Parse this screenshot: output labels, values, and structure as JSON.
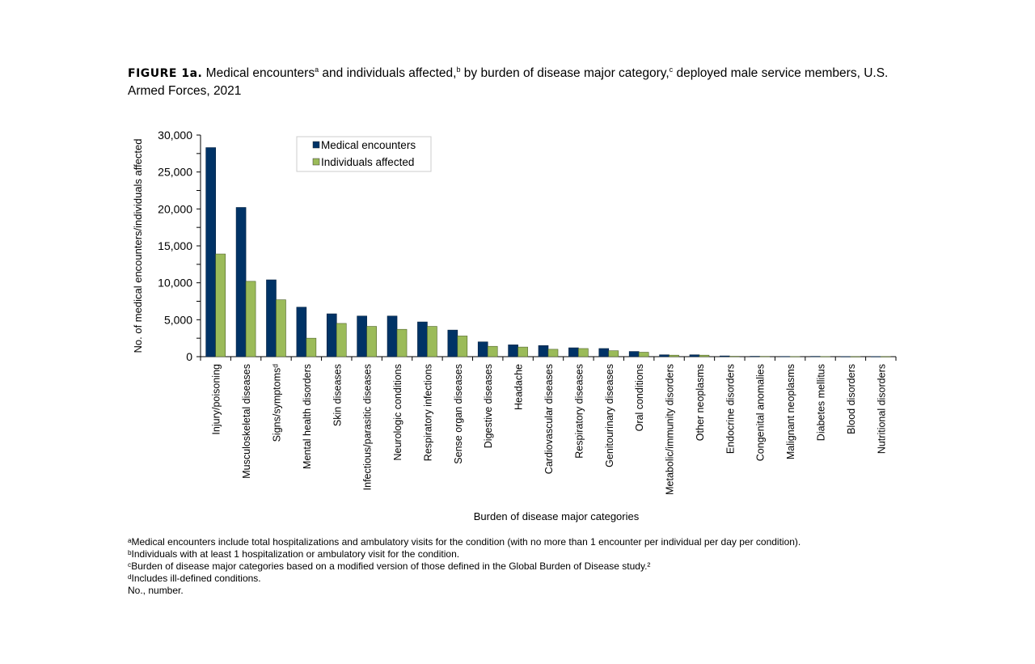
{
  "title": {
    "label": "FIGURE 1a.",
    "parts": [
      "Medical encounters",
      "a",
      " and individuals affected,",
      "b",
      " by burden of disease major category,",
      "c",
      " deployed male service members, U.S. Armed Forces, 2021"
    ]
  },
  "chart_data": {
    "type": "bar",
    "xlabel": "Burden of disease major categories",
    "ylabel": "No. of medical encounters/individuals affected",
    "ylim": [
      0,
      30000
    ],
    "yticks": [
      0,
      5000,
      10000,
      15000,
      20000,
      25000,
      30000
    ],
    "ytick_labels": [
      "0",
      "5,000",
      "10,000",
      "15,000",
      "20,000",
      "25,000",
      "30,000"
    ],
    "grid": false,
    "legend_placement": "top-center",
    "categories": [
      "Injury/poisoning",
      "Musculoskeletal diseases",
      "Signs/symptomsᵈ",
      "Mental health disorders",
      "Skin diseases",
      "Infectious/parasitic diseases",
      "Neurologic conditions",
      "Respiratory infections",
      "Sense organ diseases",
      "Digestive diseases",
      "Headache",
      "Cardiovascular diseases",
      "Respiratory diseases",
      "Genitourinary diseases",
      "Oral conditions",
      "Metabolic/immunity disorders",
      "Other neoplasms",
      "Endocrine disorders",
      "Congenital anomalies",
      "Malignant neoplasms",
      "Diabetes mellitus",
      "Blood disorders",
      "Nutritional disorders"
    ],
    "series": [
      {
        "name": "Medical encounters",
        "color": "#003366",
        "values": [
          28300,
          20200,
          10400,
          6700,
          5800,
          5500,
          5500,
          4700,
          3600,
          2000,
          1600,
          1500,
          1200,
          1100,
          700,
          250,
          250,
          100,
          50,
          30,
          40,
          20,
          20
        ]
      },
      {
        "name": "Individuals affected",
        "color": "#9BBB59",
        "values": [
          13900,
          10200,
          7700,
          2500,
          4500,
          4100,
          3700,
          4100,
          2800,
          1400,
          1300,
          1000,
          1100,
          800,
          600,
          200,
          200,
          50,
          40,
          20,
          20,
          10,
          10
        ]
      }
    ]
  },
  "footnotes": [
    "ᵃMedical encounters include total hospitalizations and ambulatory visits for the condition (with no more than 1 encounter per individual per day per condition).",
    "ᵇIndividuals with at least 1 hospitalization or ambulatory visit for the condition.",
    "ᶜBurden of disease major categories based on a modified version of those defined in the Global Burden of Disease study.²",
    "ᵈIncludes ill-defined conditions.",
    "No., number."
  ]
}
